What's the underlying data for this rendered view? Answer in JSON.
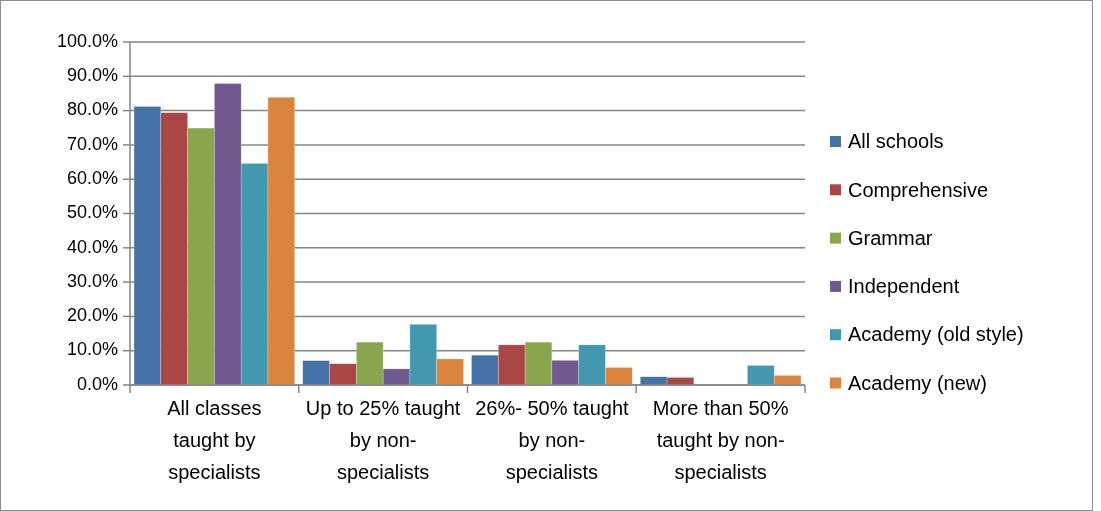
{
  "chart_data": {
    "type": "bar",
    "categories": [
      "All classes taught by specialists",
      "Up to 25% taught by non-specialists",
      "26%- 50% taught by non-specialists",
      "More than 50% taught by non-specialists"
    ],
    "series": [
      {
        "name": "All schools",
        "color": "#4572a7",
        "values": [
          81.2,
          7.1,
          8.7,
          2.4
        ]
      },
      {
        "name": "Comprehensive",
        "color": "#aa4643",
        "values": [
          79.4,
          6.2,
          11.7,
          2.2
        ]
      },
      {
        "name": "Grammar",
        "color": "#89a54e",
        "values": [
          74.9,
          12.5,
          12.5,
          0
        ]
      },
      {
        "name": "Independent",
        "color": "#71588f",
        "values": [
          87.9,
          4.7,
          7.2,
          0
        ]
      },
      {
        "name": "Academy (old style)",
        "color": "#4198af",
        "values": [
          64.6,
          17.7,
          11.7,
          5.7
        ]
      },
      {
        "name": "Academy (new)",
        "color": "#db843d",
        "values": [
          83.9,
          7.6,
          5.1,
          2.8
        ]
      }
    ],
    "ylim": [
      0,
      100
    ],
    "yticks": [
      {
        "value": 0,
        "label": "0.0%"
      },
      {
        "value": 10,
        "label": "10.0%"
      },
      {
        "value": 20,
        "label": "20.0%"
      },
      {
        "value": 30,
        "label": "30.0%"
      },
      {
        "value": 40,
        "label": "40.0%"
      },
      {
        "value": 50,
        "label": "50.0%"
      },
      {
        "value": 60,
        "label": "60.0%"
      },
      {
        "value": 70,
        "label": "70.0%"
      },
      {
        "value": 80,
        "label": "80.0%"
      },
      {
        "value": 90,
        "label": "90.0%"
      },
      {
        "value": 100,
        "label": "100.0%"
      }
    ],
    "grid": "y",
    "legend": "right"
  }
}
